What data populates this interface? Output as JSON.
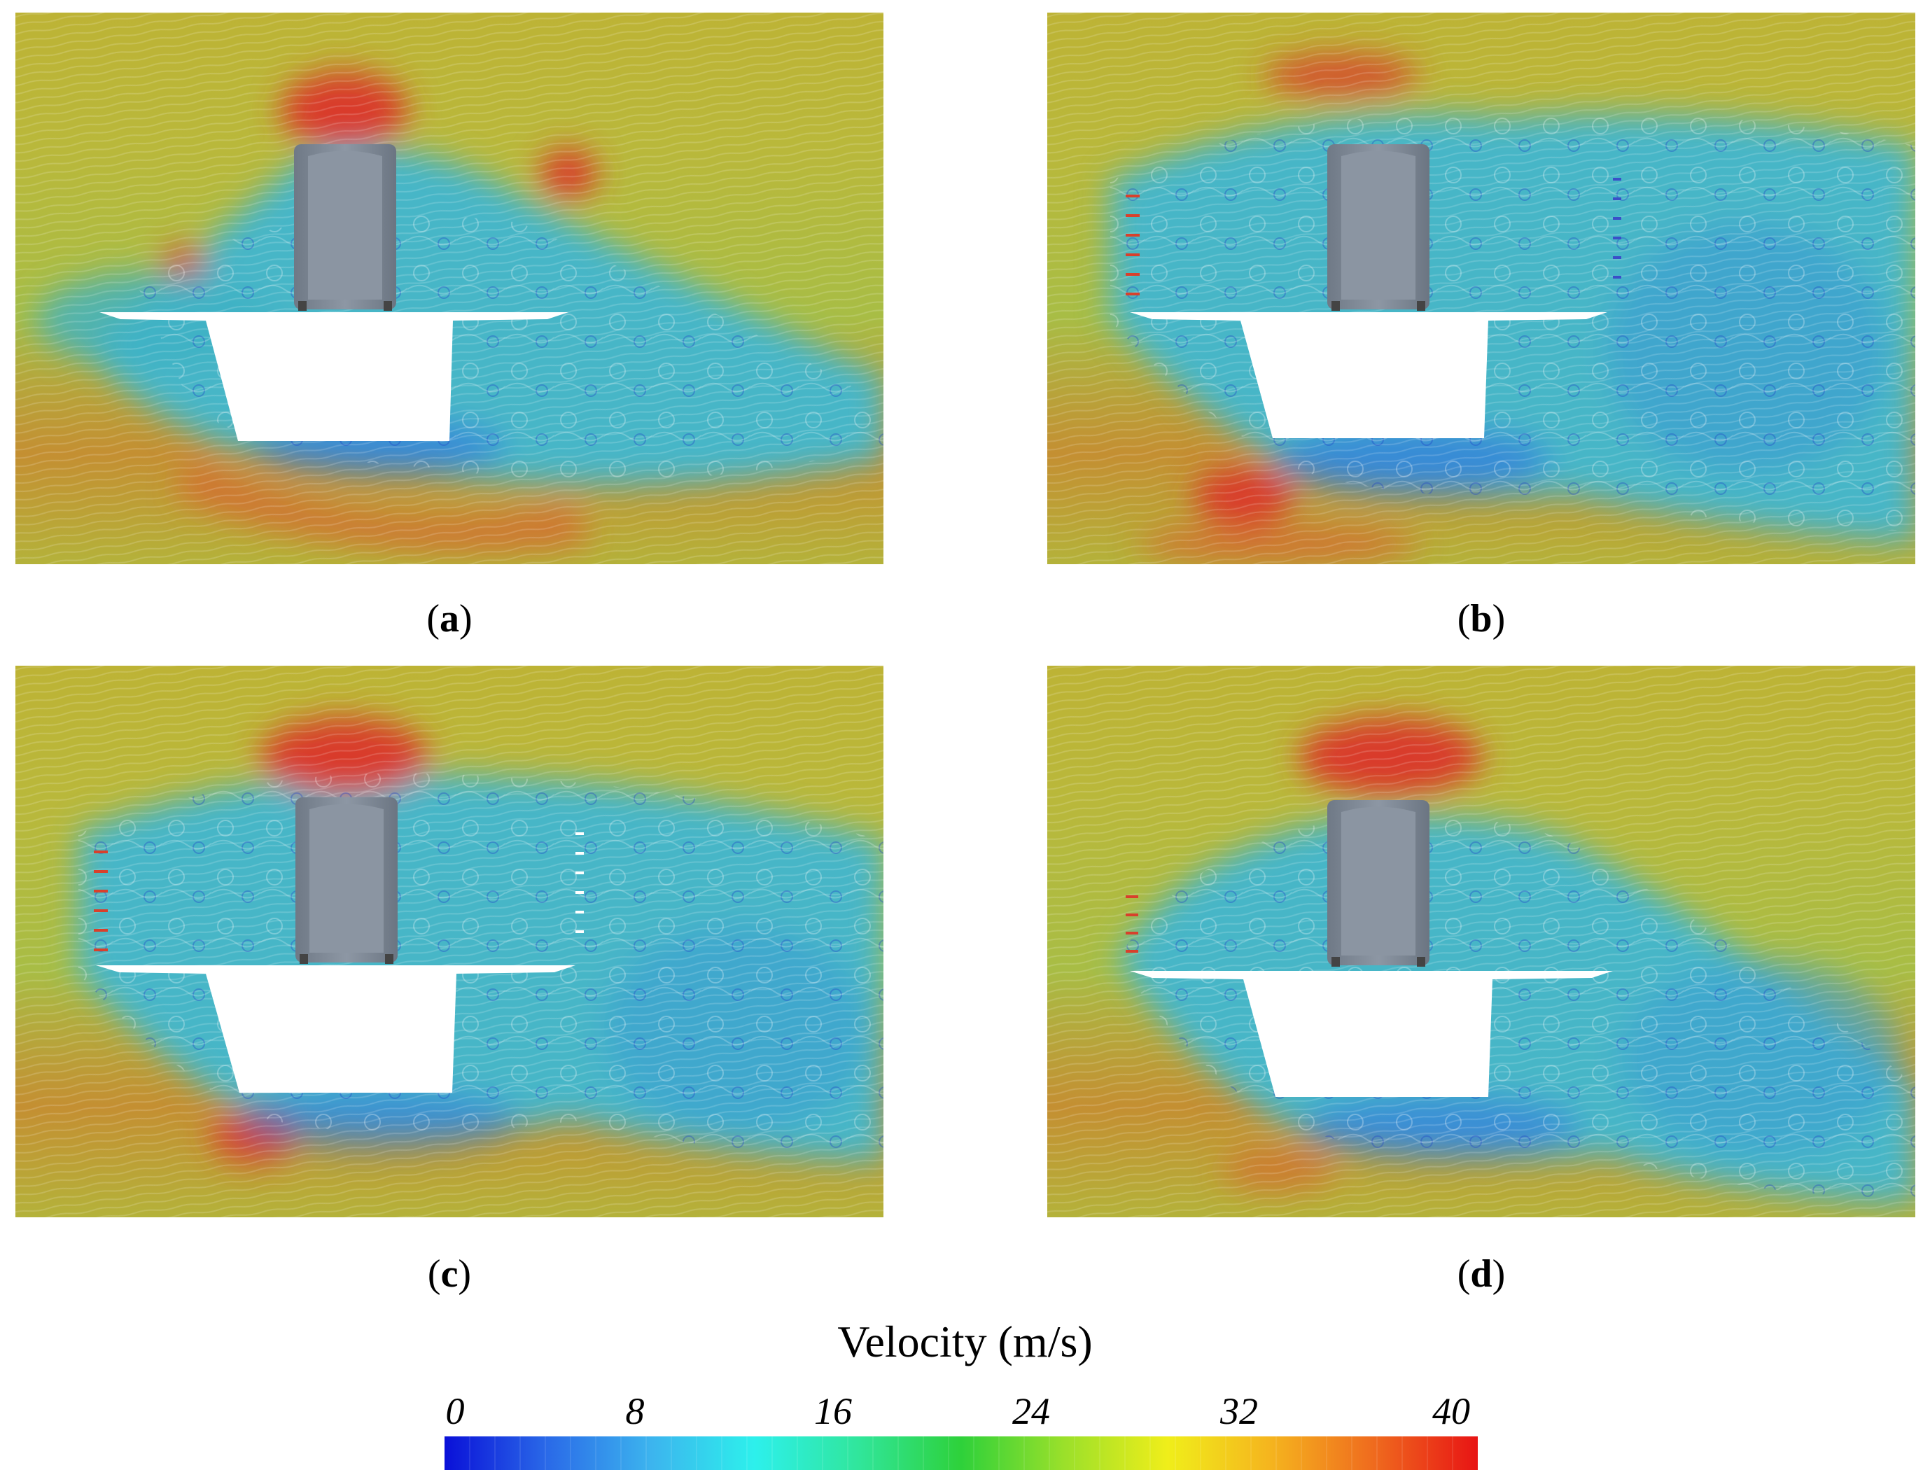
{
  "panels": [
    {
      "id": "a",
      "caption": "a",
      "variant": "none"
    },
    {
      "id": "b",
      "caption": "b",
      "variant": "full"
    },
    {
      "id": "c",
      "caption": "c",
      "variant": "full"
    },
    {
      "id": "d",
      "caption": "d",
      "variant": "upwind"
    }
  ],
  "legend": {
    "title": "Velocity (m/s)",
    "unit": "m/s",
    "min": 0,
    "max": 40,
    "ticks": [
      "0",
      "8",
      "16",
      "24",
      "32",
      "40"
    ],
    "colormap": [
      "#0a10d8",
      "#2a6ae8",
      "#3cb4ee",
      "#2df0ec",
      "#30e69c",
      "#2ed13a",
      "#9be02a",
      "#f0ee1a",
      "#f5b41e",
      "#ef6a1e",
      "#e81414"
    ]
  },
  "colors": {
    "freestream": "#b7b83a",
    "wake": "#46b7c8",
    "high_speed": "#d8402c",
    "vehicle": "#7f8a99",
    "deck": "#ffffff"
  }
}
